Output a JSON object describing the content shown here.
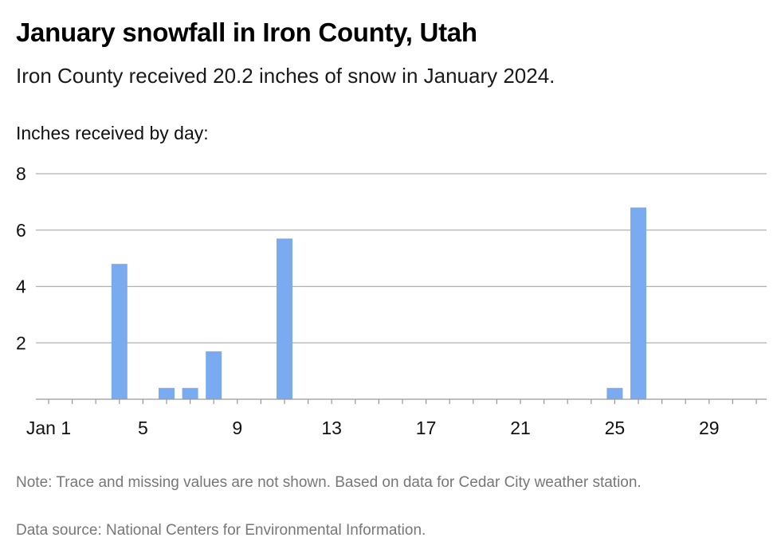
{
  "header": {
    "title": "January snowfall in Iron County, Utah",
    "subtitle": "Iron County received 20.2 inches of snow in January 2024."
  },
  "footer": {
    "note": "Note: Trace and missing values are not shown. Based on data for Cedar City weather station.",
    "source": "Data source: National Centers for Environmental Information."
  },
  "colors": {
    "bar": "#7aaaf0",
    "grid": "#b0b0b0"
  },
  "chart_data": {
    "type": "bar",
    "title": "January snowfall in Iron County, Utah",
    "subtitle": "Iron County received 20.2 inches of snow in January 2024.",
    "ylabel": "Inches received by day:",
    "xlabel": "",
    "ylim": [
      0,
      8
    ],
    "y_ticks": [
      2,
      4,
      6,
      8
    ],
    "x_ticks": [
      1,
      5,
      9,
      13,
      17,
      21,
      25,
      29
    ],
    "x_tick_labels": [
      "Jan 1",
      "5",
      "9",
      "13",
      "17",
      "21",
      "25",
      "29"
    ],
    "x_range": [
      1,
      31
    ],
    "grid": true,
    "legend": "none",
    "days": [
      1,
      2,
      3,
      4,
      5,
      6,
      7,
      8,
      9,
      10,
      11,
      12,
      13,
      14,
      15,
      16,
      17,
      18,
      19,
      20,
      21,
      22,
      23,
      24,
      25,
      26,
      27,
      28,
      29,
      30,
      31
    ],
    "values": [
      0,
      0,
      0,
      4.8,
      0,
      0.4,
      0.4,
      1.7,
      0,
      0,
      5.7,
      0,
      0,
      0,
      0,
      0,
      0,
      0,
      0,
      0,
      0,
      0,
      0,
      0,
      0.4,
      6.8,
      0,
      0,
      0,
      0,
      0
    ]
  }
}
